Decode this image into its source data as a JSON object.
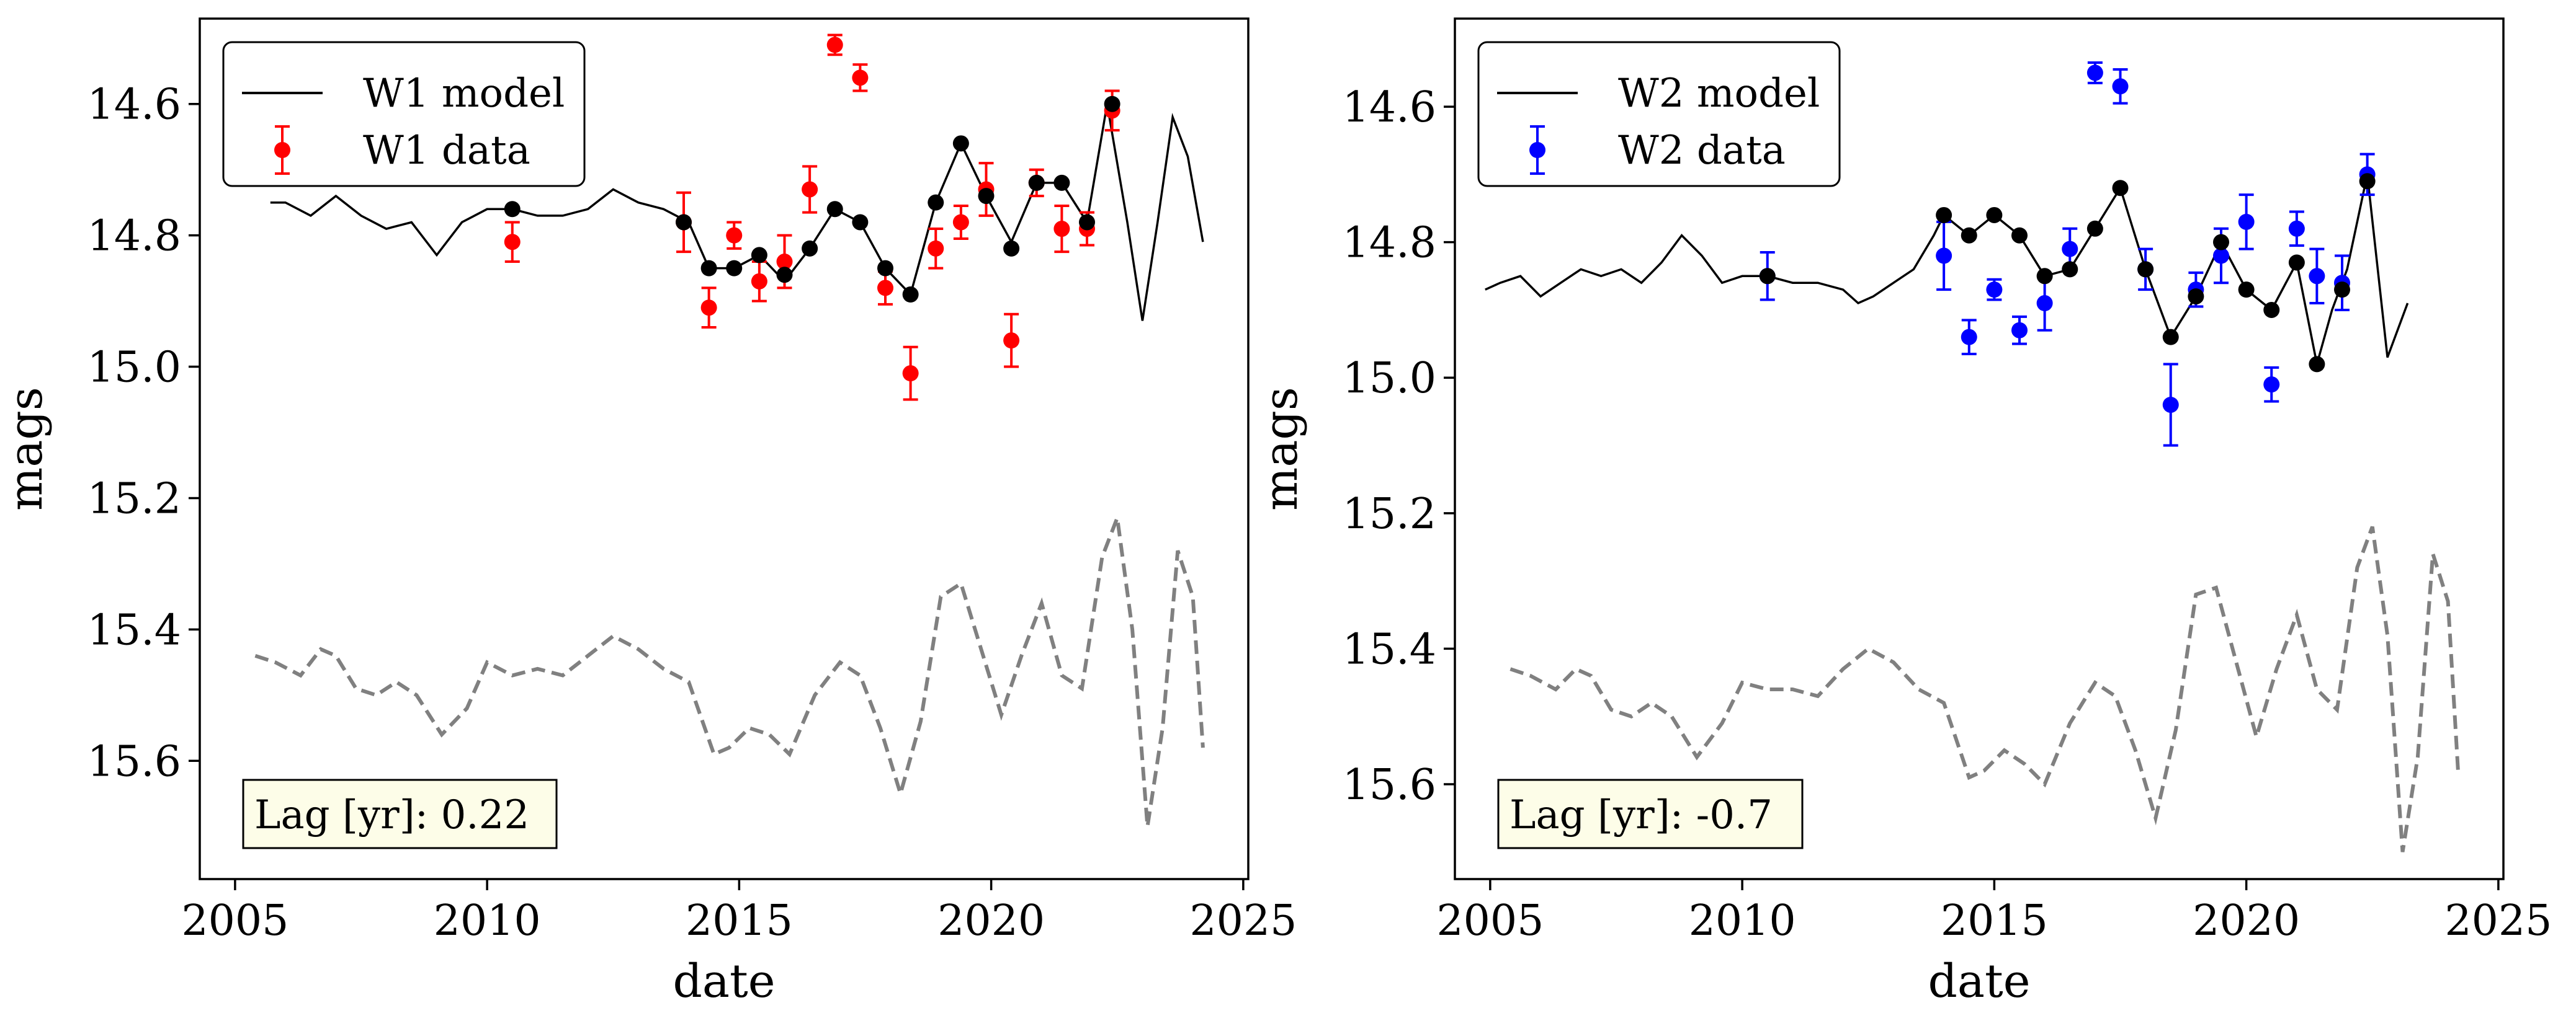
{
  "chart_data": [
    {
      "type": "line",
      "xlabel": "date",
      "ylabel": "mags",
      "xlim": [
        2004.3,
        2025.1
      ],
      "ylim": [
        15.78,
        14.47
      ],
      "y_inverted": true,
      "xticks": [
        2005,
        2010,
        2015,
        2020,
        2025
      ],
      "xtick_labels": [
        "2005",
        "2010",
        "2015",
        "2020",
        "2025"
      ],
      "yticks": [
        14.6,
        14.8,
        15.0,
        15.2,
        15.4,
        15.6
      ],
      "ytick_labels": [
        "14.6",
        "14.8",
        "15.0",
        "15.2",
        "15.4",
        "15.6"
      ],
      "grid": false,
      "legend_position": "top-left",
      "annotation": "Lag [yr]: 0.22",
      "colors": {
        "model": "#000000",
        "data": "#ff0000",
        "samples": "#000000",
        "shifted": "#808080"
      },
      "series": [
        {
          "name": "W1 model",
          "kind": "model-line",
          "x": [
            2005.7,
            2006.0,
            2006.5,
            2007.0,
            2007.5,
            2008.0,
            2008.5,
            2009.0,
            2009.5,
            2010.0,
            2010.5,
            2011.0,
            2011.5,
            2012.0,
            2012.5,
            2013.0,
            2013.5,
            2014.0,
            2014.4,
            2014.9,
            2015.4,
            2015.9,
            2016.4,
            2016.9,
            2017.4,
            2017.9,
            2018.4,
            2018.9,
            2019.4,
            2019.9,
            2020.4,
            2020.9,
            2021.4,
            2021.9,
            2022.3,
            2022.7,
            2023.0,
            2023.3,
            2023.6,
            2023.9,
            2024.2
          ],
          "y": [
            14.75,
            14.75,
            14.77,
            14.74,
            14.77,
            14.79,
            14.78,
            14.83,
            14.78,
            14.76,
            14.76,
            14.77,
            14.77,
            14.76,
            14.73,
            14.75,
            14.76,
            14.78,
            14.85,
            14.85,
            14.83,
            14.87,
            14.82,
            14.76,
            14.78,
            14.85,
            14.89,
            14.75,
            14.66,
            14.74,
            14.81,
            14.72,
            14.72,
            14.78,
            14.6,
            14.78,
            14.93,
            14.78,
            14.62,
            14.68,
            14.81
          ]
        },
        {
          "name": "W1 data",
          "kind": "errorbar",
          "x": [
            2010.5,
            2013.9,
            2014.4,
            2014.9,
            2015.4,
            2015.9,
            2016.4,
            2016.9,
            2017.4,
            2017.9,
            2018.4,
            2018.9,
            2019.4,
            2019.9,
            2020.4,
            2020.9,
            2021.4,
            2021.9,
            2022.4
          ],
          "y": [
            14.81,
            14.78,
            14.91,
            14.8,
            14.87,
            14.84,
            14.73,
            14.51,
            14.56,
            14.88,
            15.01,
            14.82,
            14.78,
            14.73,
            14.96,
            14.72,
            14.79,
            14.79,
            14.61
          ],
          "err": [
            0.03,
            0.045,
            0.03,
            0.02,
            0.03,
            0.04,
            0.035,
            0.015,
            0.02,
            0.025,
            0.04,
            0.03,
            0.025,
            0.04,
            0.04,
            0.02,
            0.035,
            0.025,
            0.03
          ]
        },
        {
          "name": "",
          "kind": "model-samples",
          "x": [
            2010.5,
            2013.9,
            2014.4,
            2014.9,
            2015.4,
            2015.9,
            2016.4,
            2016.9,
            2017.4,
            2017.9,
            2018.4,
            2018.9,
            2019.4,
            2019.9,
            2020.4,
            2020.9,
            2021.4,
            2021.9,
            2022.4
          ],
          "y": [
            14.76,
            14.78,
            14.85,
            14.85,
            14.83,
            14.86,
            14.82,
            14.76,
            14.78,
            14.85,
            14.89,
            14.75,
            14.66,
            14.74,
            14.82,
            14.72,
            14.72,
            14.78,
            14.6
          ]
        },
        {
          "name": "",
          "kind": "dashed",
          "x": [
            2005.4,
            2005.8,
            2006.3,
            2006.7,
            2007.0,
            2007.4,
            2007.8,
            2008.2,
            2008.6,
            2009.1,
            2009.6,
            2010.0,
            2010.5,
            2011.0,
            2011.5,
            2012.0,
            2012.5,
            2013.0,
            2013.5,
            2014.0,
            2014.5,
            2014.8,
            2015.2,
            2015.6,
            2016.0,
            2016.5,
            2017.0,
            2017.4,
            2017.8,
            2018.2,
            2018.6,
            2019.0,
            2019.4,
            2019.8,
            2020.2,
            2020.6,
            2021.0,
            2021.4,
            2021.8,
            2022.2,
            2022.5,
            2022.8,
            2023.1,
            2023.4,
            2023.7,
            2024.0,
            2024.2
          ],
          "y": [
            15.44,
            15.45,
            15.47,
            15.43,
            15.44,
            15.49,
            15.5,
            15.48,
            15.5,
            15.56,
            15.52,
            15.45,
            15.47,
            15.46,
            15.47,
            15.44,
            15.41,
            15.43,
            15.46,
            15.48,
            15.59,
            15.58,
            15.55,
            15.56,
            15.59,
            15.5,
            15.45,
            15.47,
            15.55,
            15.65,
            15.54,
            15.35,
            15.33,
            15.43,
            15.53,
            15.44,
            15.36,
            15.47,
            15.49,
            15.29,
            15.23,
            15.4,
            15.7,
            15.55,
            15.28,
            15.35,
            15.58
          ]
        }
      ]
    },
    {
      "type": "line",
      "xlabel": "date",
      "ylabel": "mags",
      "xlim": [
        2004.3,
        2025.1
      ],
      "ylim": [
        15.74,
        14.47
      ],
      "y_inverted": true,
      "xticks": [
        2005,
        2010,
        2015,
        2020,
        2025
      ],
      "xtick_labels": [
        "2005",
        "2010",
        "2015",
        "2020",
        "2025"
      ],
      "yticks": [
        14.6,
        14.8,
        15.0,
        15.2,
        15.4,
        15.6
      ],
      "ytick_labels": [
        "14.6",
        "14.8",
        "15.0",
        "15.2",
        "15.4",
        "15.6"
      ],
      "grid": false,
      "legend_position": "top-left",
      "annotation": "Lag [yr]: -0.7",
      "colors": {
        "model": "#000000",
        "data": "#0000ff",
        "samples": "#000000",
        "shifted": "#808080"
      },
      "series": [
        {
          "name": "W2 model",
          "kind": "model-line",
          "x": [
            2004.9,
            2005.2,
            2005.6,
            2006.0,
            2006.4,
            2006.8,
            2007.2,
            2007.6,
            2008.0,
            2008.4,
            2008.8,
            2009.2,
            2009.6,
            2010.0,
            2010.5,
            2011.0,
            2011.5,
            2012.0,
            2012.3,
            2012.6,
            2013.0,
            2013.4,
            2013.8,
            2014.0,
            2014.5,
            2015.0,
            2015.5,
            2016.0,
            2016.5,
            2017.0,
            2017.5,
            2018.0,
            2018.5,
            2019.0,
            2019.5,
            2020.0,
            2020.5,
            2021.0,
            2021.4,
            2021.7,
            2022.0,
            2022.4,
            2022.8,
            2023.2
          ],
          "y": [
            14.87,
            14.86,
            14.85,
            14.88,
            14.86,
            14.84,
            14.85,
            14.84,
            14.86,
            14.83,
            14.79,
            14.82,
            14.86,
            14.85,
            14.85,
            14.86,
            14.86,
            14.87,
            14.89,
            14.88,
            14.86,
            14.84,
            14.79,
            14.76,
            14.79,
            14.76,
            14.79,
            14.85,
            14.84,
            14.78,
            14.72,
            14.84,
            14.94,
            14.88,
            14.8,
            14.87,
            14.9,
            14.83,
            14.98,
            14.9,
            14.84,
            14.7,
            14.97,
            14.89
          ]
        },
        {
          "name": "W2 data",
          "kind": "errorbar",
          "x": [
            2010.5,
            2014.0,
            2014.5,
            2015.0,
            2015.5,
            2016.0,
            2016.5,
            2017.0,
            2017.5,
            2018.0,
            2018.5,
            2019.0,
            2019.5,
            2020.0,
            2020.5,
            2021.0,
            2021.4,
            2021.9,
            2022.4
          ],
          "y": [
            14.85,
            14.82,
            14.94,
            14.87,
            14.93,
            14.89,
            14.81,
            14.55,
            14.57,
            14.84,
            15.04,
            14.87,
            14.82,
            14.77,
            15.01,
            14.78,
            14.85,
            14.86,
            14.7
          ],
          "err": [
            0.035,
            0.05,
            0.025,
            0.015,
            0.02,
            0.04,
            0.03,
            0.015,
            0.025,
            0.03,
            0.06,
            0.025,
            0.04,
            0.04,
            0.025,
            0.025,
            0.04,
            0.04,
            0.03
          ]
        },
        {
          "name": "",
          "kind": "model-samples",
          "x": [
            2010.5,
            2014.0,
            2014.5,
            2015.0,
            2015.5,
            2016.0,
            2016.5,
            2017.0,
            2017.5,
            2018.0,
            2018.5,
            2019.0,
            2019.5,
            2020.0,
            2020.5,
            2021.0,
            2021.4,
            2021.9,
            2022.4
          ],
          "y": [
            14.85,
            14.76,
            14.79,
            14.76,
            14.79,
            14.85,
            14.84,
            14.78,
            14.72,
            14.84,
            14.94,
            14.88,
            14.8,
            14.87,
            14.9,
            14.83,
            14.98,
            14.87,
            14.71
          ]
        },
        {
          "name": "",
          "kind": "dashed",
          "x": [
            2005.4,
            2005.8,
            2006.3,
            2006.7,
            2007.0,
            2007.4,
            2007.8,
            2008.2,
            2008.6,
            2009.1,
            2009.6,
            2010.0,
            2010.5,
            2011.0,
            2011.5,
            2012.0,
            2012.5,
            2013.0,
            2013.5,
            2014.0,
            2014.5,
            2014.8,
            2015.2,
            2015.6,
            2016.0,
            2016.5,
            2017.0,
            2017.4,
            2017.8,
            2018.2,
            2018.6,
            2019.0,
            2019.4,
            2019.8,
            2020.2,
            2020.6,
            2021.0,
            2021.4,
            2021.8,
            2022.2,
            2022.5,
            2022.8,
            2023.1,
            2023.4,
            2023.7,
            2024.0,
            2024.2
          ],
          "y": [
            15.43,
            15.44,
            15.46,
            15.43,
            15.44,
            15.49,
            15.5,
            15.48,
            15.5,
            15.56,
            15.51,
            15.45,
            15.46,
            15.46,
            15.47,
            15.43,
            15.4,
            15.42,
            15.46,
            15.48,
            15.59,
            15.58,
            15.55,
            15.57,
            15.6,
            15.51,
            15.45,
            15.47,
            15.55,
            15.65,
            15.52,
            15.32,
            15.31,
            15.42,
            15.53,
            15.43,
            15.35,
            15.46,
            15.49,
            15.28,
            15.22,
            15.38,
            15.7,
            15.56,
            15.26,
            15.33,
            15.58
          ]
        }
      ]
    }
  ]
}
